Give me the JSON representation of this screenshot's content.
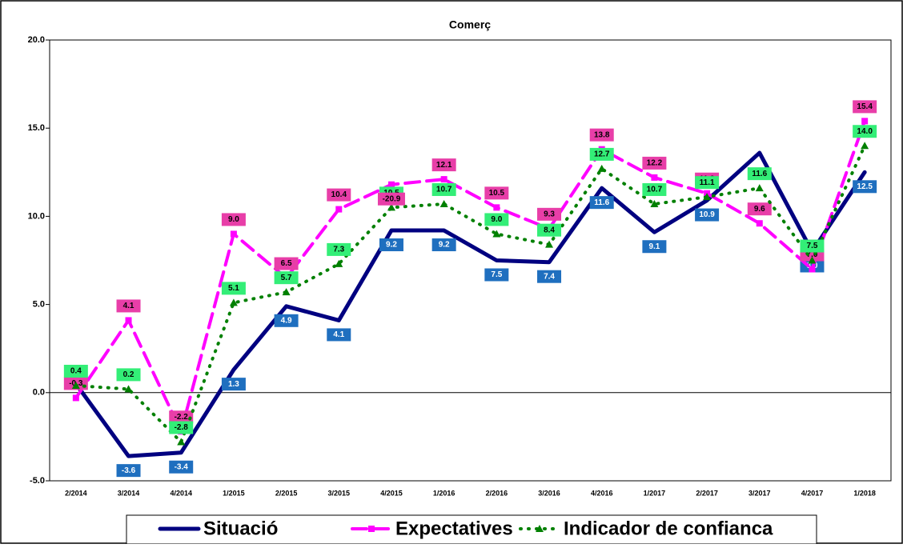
{
  "chart_data": {
    "type": "line",
    "title": "Comerç",
    "categories": [
      "2/2014",
      "3/2014",
      "4/2014",
      "1/2015",
      "2/2015",
      "3/2015",
      "4/2015",
      "1/2016",
      "2/2016",
      "3/2016",
      "4/2016",
      "1/2017",
      "2/2017",
      "3/2017",
      "4/2017",
      "1/2018"
    ],
    "ylim": [
      -5,
      20
    ],
    "yticks": [
      {
        "value": -5,
        "label": "-5.0"
      },
      {
        "value": 0,
        "label": "0.0"
      },
      {
        "value": 5,
        "label": "5.0"
      },
      {
        "value": 10,
        "label": "10.0"
      },
      {
        "value": 15,
        "label": "15.0"
      },
      {
        "value": 20,
        "label": "20.0"
      }
    ],
    "grid": false,
    "annotations": [
      "-20.9"
    ],
    "series": [
      {
        "name": "Situació",
        "color": "#000080",
        "values": [
          0.5,
          -3.6,
          -3.4,
          1.3,
          4.9,
          4.1,
          9.2,
          9.2,
          7.5,
          7.4,
          11.6,
          9.1,
          10.9,
          13.6,
          8.0,
          12.5
        ],
        "value_labels": [
          null,
          "-3.6",
          "-3.4",
          "1.3",
          "4.9",
          "4.1",
          "9.2",
          "9.2",
          "7.5",
          "7.4",
          "11.6",
          "9.1",
          "10.9",
          null,
          "8.0",
          "12.5"
        ]
      },
      {
        "name": "Expectatives",
        "color": "#ff00ff",
        "values": [
          -0.3,
          4.1,
          -2.2,
          9.0,
          6.5,
          10.4,
          11.8,
          12.1,
          10.5,
          9.3,
          13.8,
          12.2,
          11.3,
          9.6,
          7.0,
          15.4
        ],
        "value_labels": [
          "-0.3",
          "4.1",
          "-2.2",
          "9.0",
          "6.5",
          "10.4",
          null,
          "12.1",
          "10.5",
          "9.3",
          "13.8",
          "12.2",
          "11.3",
          "9.6",
          "7.0",
          "15.4"
        ]
      },
      {
        "name": "Indicador de confianca",
        "color": "#008000",
        "values": [
          0.4,
          0.2,
          -2.8,
          5.1,
          5.7,
          7.3,
          10.5,
          10.7,
          9.0,
          8.4,
          12.7,
          10.7,
          11.1,
          11.6,
          7.5,
          14.0
        ],
        "value_labels": [
          "0.4",
          "0.2",
          "-2.8",
          "5.1",
          "5.7",
          "7.3",
          "10.5",
          "10.7",
          "9.0",
          "8.4",
          "12.7",
          "10.7",
          "11.1",
          "11.6",
          "7.5",
          "14.0"
        ]
      }
    ]
  }
}
